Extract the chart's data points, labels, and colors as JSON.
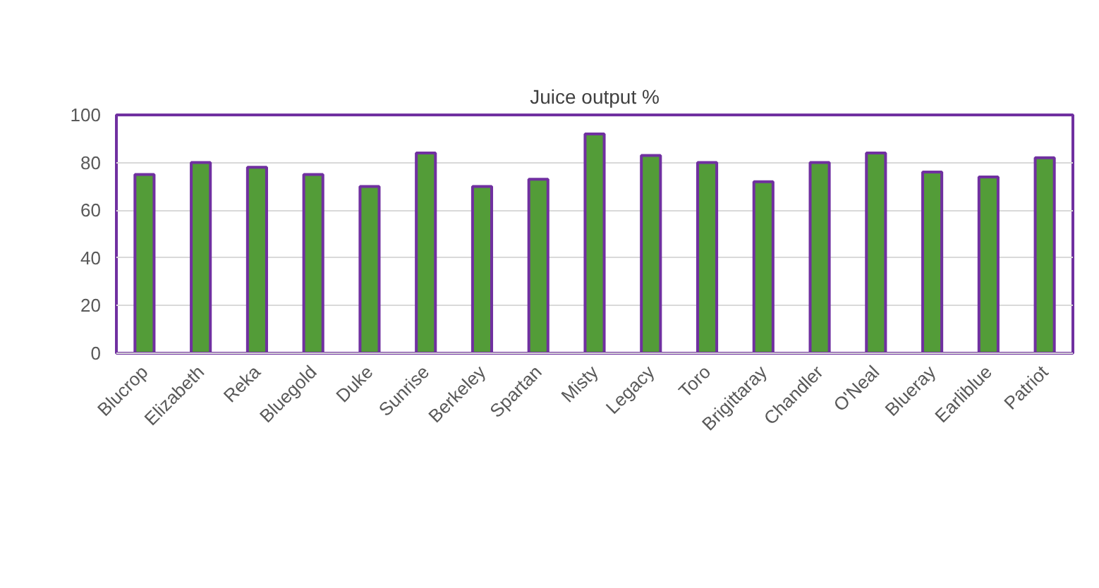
{
  "chart_data": {
    "type": "bar",
    "title": "Juice output %",
    "categories": [
      "Blucrop",
      "Elizabeth",
      "Reka",
      "Bluegold",
      "Duke",
      "Sunrise",
      "Berkeley",
      "Spartan",
      "Misty",
      "Legacy",
      "Toro",
      "Brigittaray",
      "Chandler",
      "O'Neal",
      "Blueray",
      "Earliblue",
      "Patriot"
    ],
    "values": [
      75,
      80,
      78,
      75,
      70,
      84,
      70,
      73,
      92,
      83,
      80,
      72,
      80,
      84,
      76,
      74,
      82
    ],
    "color": "#539c38",
    "ylim": [
      0,
      100
    ],
    "yticks": [
      0,
      20,
      40,
      60,
      80,
      100
    ],
    "grid": "y"
  }
}
